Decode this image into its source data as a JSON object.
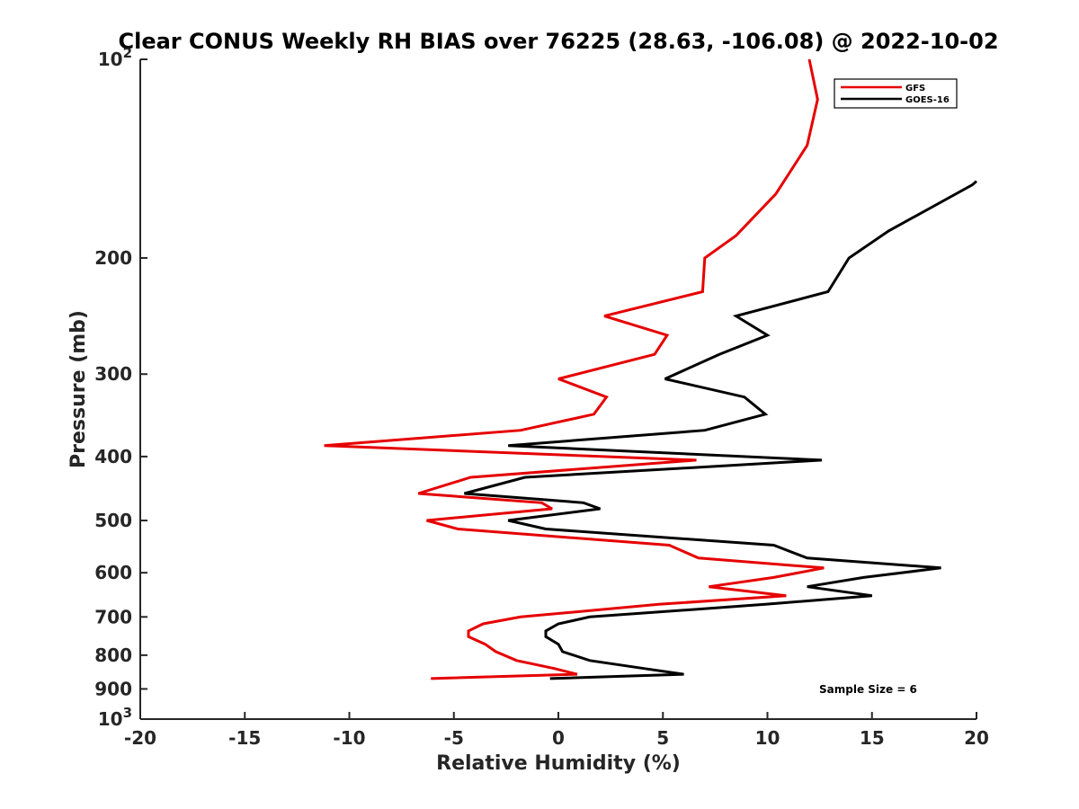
{
  "chart_data": {
    "type": "line",
    "title": "Clear CONUS Weekly RH BIAS over 76225 (28.63, -106.08) @ 2022-10-02",
    "xlabel": "Relative Humidity (%)",
    "ylabel": "Pressure (mb)",
    "xlim": [
      -20,
      20
    ],
    "ylim": [
      100,
      1000
    ],
    "y_scale": "log",
    "y_reversed": true,
    "x_ticks": [
      "-20",
      "-15",
      "-10",
      "-5",
      "0",
      "5",
      "10",
      "15",
      "20"
    ],
    "y_ticks": [
      {
        "value": 100,
        "base": "10",
        "exp": "2"
      },
      {
        "value": 200,
        "label": "200"
      },
      {
        "value": 300,
        "label": "300"
      },
      {
        "value": 400,
        "label": "400"
      },
      {
        "value": 500,
        "label": "500"
      },
      {
        "value": 600,
        "label": "600"
      },
      {
        "value": 700,
        "label": "700"
      },
      {
        "value": 800,
        "label": "800"
      },
      {
        "value": 900,
        "label": "900"
      },
      {
        "value": 1000,
        "base": "10",
        "exp": "3"
      }
    ],
    "grid": false,
    "legend_position": "top-right",
    "annotation": "Sample Size = 6",
    "series": [
      {
        "name": "GFS",
        "color": "#e60000",
        "points": [
          [
            12.0,
            100
          ],
          [
            12.4,
            115
          ],
          [
            11.9,
            135
          ],
          [
            10.4,
            160
          ],
          [
            8.5,
            185
          ],
          [
            7.0,
            200
          ],
          [
            6.9,
            225
          ],
          [
            2.2,
            245
          ],
          [
            5.2,
            262
          ],
          [
            4.6,
            280
          ],
          [
            0.0,
            305
          ],
          [
            2.3,
            325
          ],
          [
            1.7,
            345
          ],
          [
            -1.8,
            365
          ],
          [
            -11.2,
            385
          ],
          [
            6.6,
            405
          ],
          [
            -4.2,
            430
          ],
          [
            -6.7,
            455
          ],
          [
            -0.8,
            470
          ],
          [
            -0.3,
            480
          ],
          [
            -6.3,
            500
          ],
          [
            -4.8,
            515
          ],
          [
            5.3,
            545
          ],
          [
            6.7,
            570
          ],
          [
            12.7,
            590
          ],
          [
            10.3,
            610
          ],
          [
            7.2,
            630
          ],
          [
            10.9,
            650
          ],
          [
            4.8,
            670
          ],
          [
            -1.8,
            700
          ],
          [
            -3.6,
            717
          ],
          [
            -4.3,
            735
          ],
          [
            -4.3,
            750
          ],
          [
            -3.5,
            770
          ],
          [
            -3.0,
            790
          ],
          [
            -2.0,
            815
          ],
          [
            -0.2,
            838
          ],
          [
            0.9,
            855
          ],
          [
            -6.1,
            868
          ]
        ]
      },
      {
        "name": "GOES-16",
        "color": "#000000",
        "points": [
          [
            20.0,
            153
          ],
          [
            19.8,
            155
          ],
          [
            15.8,
            182
          ],
          [
            13.9,
            200
          ],
          [
            12.9,
            225
          ],
          [
            8.5,
            245
          ],
          [
            10.0,
            262
          ],
          [
            7.7,
            280
          ],
          [
            5.1,
            305
          ],
          [
            8.9,
            325
          ],
          [
            9.9,
            345
          ],
          [
            7.0,
            365
          ],
          [
            -2.4,
            385
          ],
          [
            12.6,
            405
          ],
          [
            -1.6,
            430
          ],
          [
            -4.5,
            455
          ],
          [
            1.2,
            470
          ],
          [
            2.0,
            480
          ],
          [
            -2.4,
            500
          ],
          [
            -0.6,
            515
          ],
          [
            10.3,
            545
          ],
          [
            11.9,
            570
          ],
          [
            18.3,
            590
          ],
          [
            14.6,
            610
          ],
          [
            11.9,
            630
          ],
          [
            15.0,
            650
          ],
          [
            9.9,
            670
          ],
          [
            1.5,
            700
          ],
          [
            0.0,
            717
          ],
          [
            -0.6,
            735
          ],
          [
            -0.6,
            750
          ],
          [
            0.0,
            770
          ],
          [
            0.2,
            790
          ],
          [
            1.5,
            815
          ],
          [
            4.1,
            838
          ],
          [
            6.0,
            855
          ],
          [
            -0.4,
            868
          ]
        ]
      }
    ]
  }
}
